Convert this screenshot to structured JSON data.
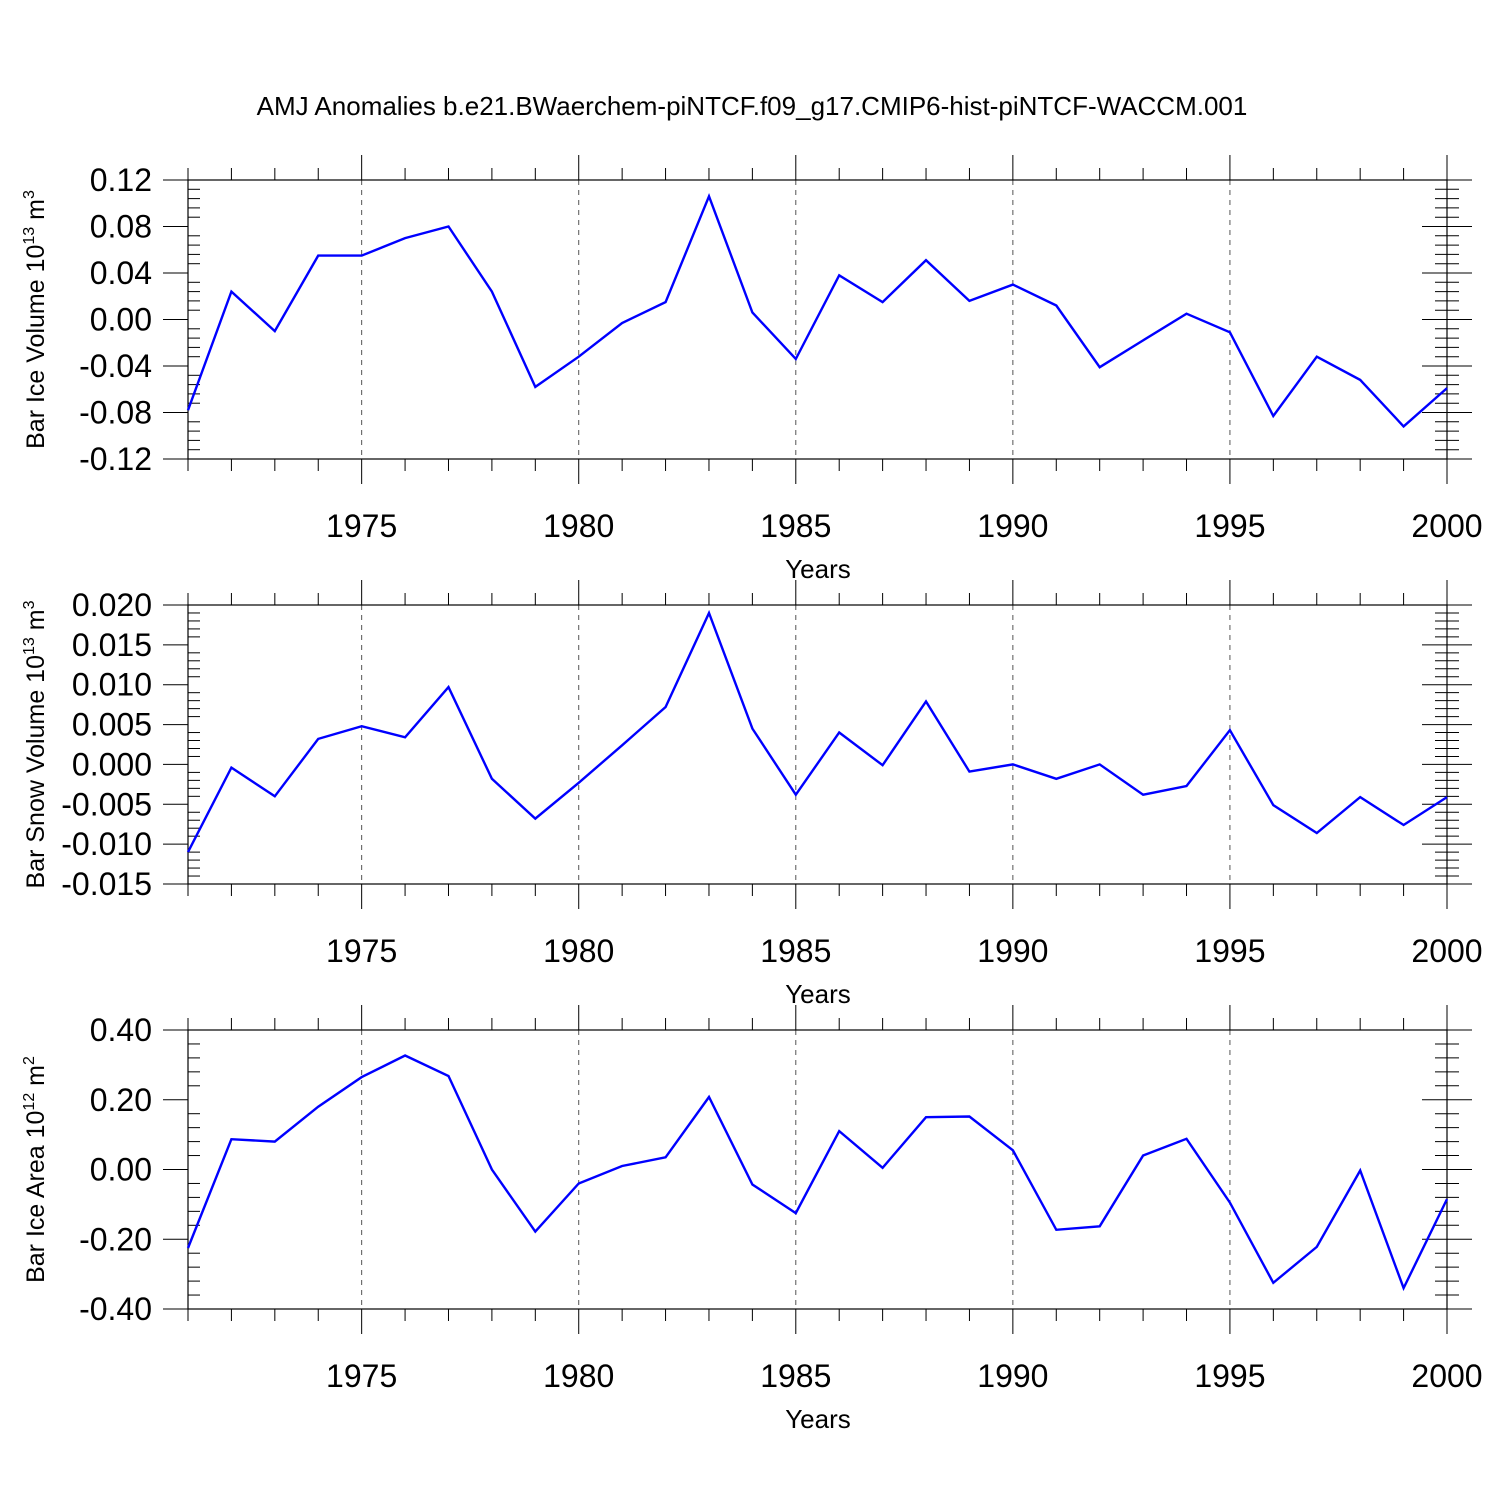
{
  "title": "AMJ Anomalies b.e21.BWaerchem-piNTCF.f09_g17.CMIP6-hist-piNTCF-WACCM.001",
  "line_color": "#0000ff",
  "chart_data": [
    {
      "type": "line",
      "ylabel": "Bar Ice Volume 10",
      "ylabel_exp": "13",
      "ylabel_unit": " m",
      "ylabel_unit_exp": "3",
      "xlabel": "Years",
      "xlim": [
        1971,
        2000
      ],
      "ylim": [
        -0.12,
        0.12
      ],
      "yticks": [
        -0.12,
        -0.08,
        -0.04,
        0.0,
        0.04,
        0.08,
        0.12
      ],
      "ytick_labels": [
        "-0.12",
        "-0.08",
        "-0.04",
        "0.00",
        "0.04",
        "0.08",
        "0.12"
      ],
      "xticks": [
        1975,
        1980,
        1985,
        1990,
        1995,
        2000
      ],
      "xtick_labels": [
        "1975",
        "1980",
        "1985",
        "1990",
        "1995",
        "2000"
      ],
      "x": [
        1971,
        1972,
        1973,
        1974,
        1975,
        1976,
        1977,
        1978,
        1979,
        1980,
        1981,
        1982,
        1983,
        1984,
        1985,
        1986,
        1987,
        1988,
        1989,
        1990,
        1991,
        1992,
        1993,
        1994,
        1995,
        1996,
        1997,
        1998,
        1999,
        2000
      ],
      "values": [
        -0.078,
        0.024,
        -0.01,
        0.055,
        0.055,
        0.07,
        0.08,
        0.024,
        -0.058,
        -0.032,
        -0.003,
        0.015,
        0.106,
        0.006,
        -0.034,
        0.038,
        0.015,
        0.051,
        0.016,
        0.03,
        0.012,
        -0.041,
        -0.018,
        0.005,
        -0.011,
        -0.083,
        -0.032,
        -0.052,
        -0.092,
        -0.059
      ]
    },
    {
      "type": "line",
      "ylabel": "Bar Snow Volume 10",
      "ylabel_exp": "13",
      "ylabel_unit": " m",
      "ylabel_unit_exp": "3",
      "xlabel": "Years",
      "xlim": [
        1971,
        2000
      ],
      "ylim": [
        -0.015,
        0.02
      ],
      "yticks": [
        -0.015,
        -0.01,
        -0.005,
        0.0,
        0.005,
        0.01,
        0.015,
        0.02
      ],
      "ytick_labels": [
        "-0.015",
        "-0.010",
        "-0.005",
        "0.000",
        "0.005",
        "0.010",
        "0.015",
        "0.020"
      ],
      "xticks": [
        1975,
        1980,
        1985,
        1990,
        1995,
        2000
      ],
      "xtick_labels": [
        "1975",
        "1980",
        "1985",
        "1990",
        "1995",
        "2000"
      ],
      "x": [
        1971,
        1972,
        1973,
        1974,
        1975,
        1976,
        1977,
        1978,
        1979,
        1980,
        1981,
        1982,
        1983,
        1984,
        1985,
        1986,
        1987,
        1988,
        1989,
        1990,
        1991,
        1992,
        1993,
        1994,
        1995,
        1996,
        1997,
        1998,
        1999,
        2000
      ],
      "values": [
        -0.011,
        -0.0004,
        -0.004,
        0.0032,
        0.0048,
        0.0034,
        0.0097,
        -0.0018,
        -0.0068,
        -0.0023,
        0.0024,
        0.0072,
        0.019,
        0.0045,
        -0.0038,
        0.004,
        -0.0001,
        0.0079,
        -0.0009,
        0.0,
        -0.0018,
        0.0,
        -0.0038,
        -0.0027,
        0.0043,
        -0.0051,
        -0.0086,
        -0.0041,
        -0.0076,
        -0.0041
      ]
    },
    {
      "type": "line",
      "ylabel": "Bar Ice Area 10",
      "ylabel_exp": "12",
      "ylabel_unit": " m",
      "ylabel_unit_exp": "2",
      "xlabel": "Years",
      "xlim": [
        1971,
        2000
      ],
      "ylim": [
        -0.4,
        0.4
      ],
      "yticks": [
        -0.4,
        -0.2,
        0.0,
        0.2,
        0.4
      ],
      "ytick_labels": [
        "-0.40",
        "-0.20",
        "0.00",
        "0.20",
        "0.40"
      ],
      "xticks": [
        1975,
        1980,
        1985,
        1990,
        1995,
        2000
      ],
      "xtick_labels": [
        "1975",
        "1980",
        "1985",
        "1990",
        "1995",
        "2000"
      ],
      "x": [
        1971,
        1972,
        1973,
        1974,
        1975,
        1976,
        1977,
        1978,
        1979,
        1980,
        1981,
        1982,
        1983,
        1984,
        1985,
        1986,
        1987,
        1988,
        1989,
        1990,
        1991,
        1992,
        1993,
        1994,
        1995,
        1996,
        1997,
        1998,
        1999,
        2000
      ],
      "values": [
        -0.225,
        0.087,
        0.08,
        0.18,
        0.265,
        0.327,
        0.268,
        0.0,
        -0.178,
        -0.04,
        0.01,
        0.035,
        0.208,
        -0.043,
        -0.125,
        0.11,
        0.005,
        0.15,
        0.152,
        0.055,
        -0.173,
        -0.163,
        0.04,
        0.088,
        -0.095,
        -0.325,
        -0.222,
        -0.003,
        -0.34,
        -0.085
      ]
    }
  ]
}
